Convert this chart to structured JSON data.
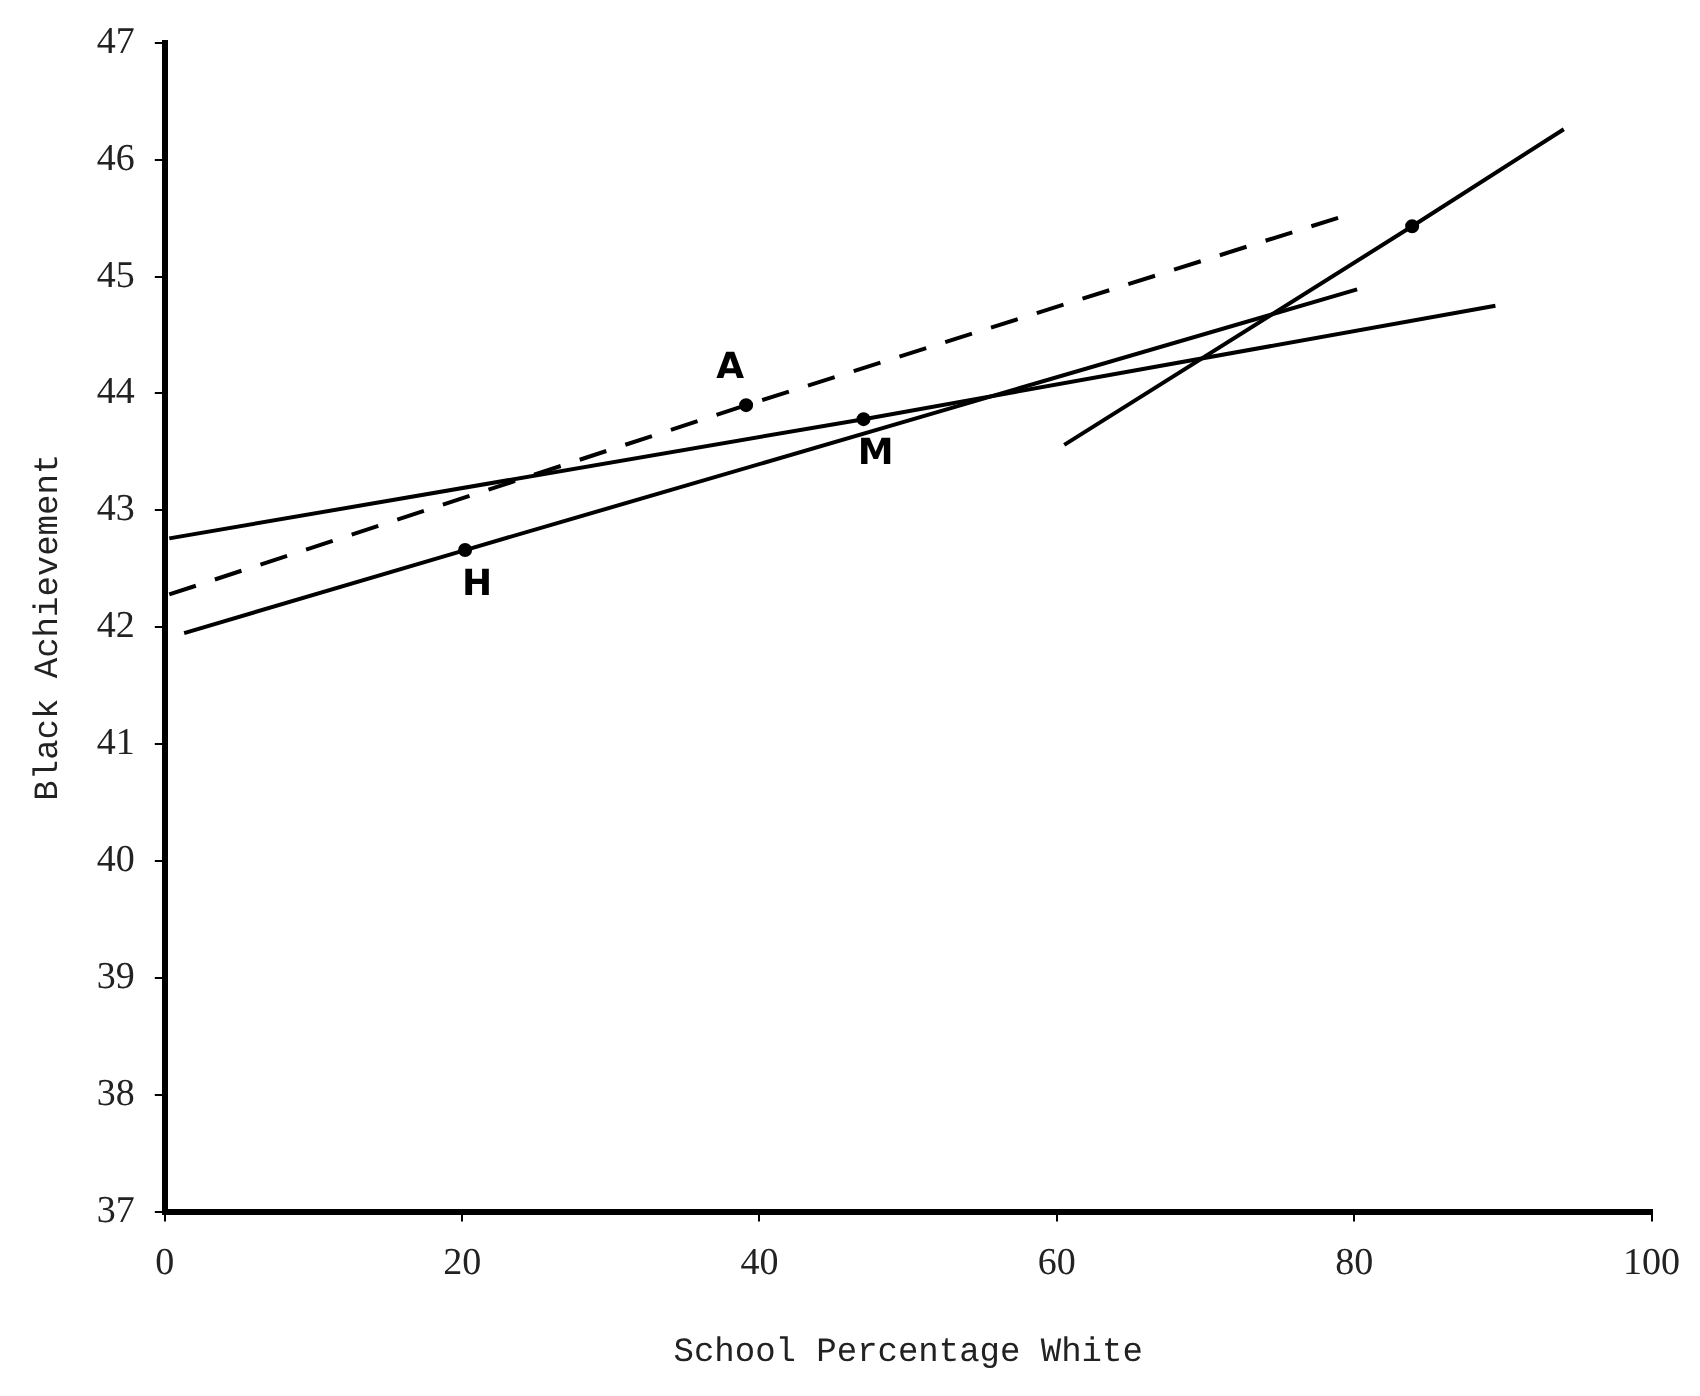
{
  "chart_data": {
    "type": "line",
    "xlabel": "School Percentage White",
    "ylabel": "Black Achievement",
    "xlim": [
      0,
      100
    ],
    "xticks": [
      0,
      20,
      40,
      60,
      80,
      100
    ],
    "ylim": [
      37,
      47
    ],
    "yticks": [
      37,
      38,
      39,
      40,
      41,
      42,
      43,
      44,
      45,
      46,
      47
    ],
    "grid": false,
    "legend": false,
    "series": [
      {
        "type": "line",
        "color": "#000000",
        "line_style": "dashed",
        "marker": "none",
        "x": [
          0.3,
          39.1,
          79.1
        ],
        "values": [
          42.28,
          43.9,
          45.51
        ]
      },
      {
        "type": "line",
        "color": "#000000",
        "line_style": "solid",
        "marker": "none",
        "x": [
          0.3,
          47.0,
          89.5
        ],
        "values": [
          42.76,
          43.78,
          44.75
        ]
      },
      {
        "type": "line",
        "color": "#000000",
        "line_style": "solid",
        "marker": "none",
        "x": [
          1.3,
          20.2,
          80.2
        ],
        "values": [
          41.95,
          42.66,
          44.89
        ]
      },
      {
        "type": "line",
        "color": "#000000",
        "line_style": "solid",
        "marker": "none",
        "x": [
          60.5,
          83.9,
          94.1
        ],
        "values": [
          43.56,
          45.43,
          46.26
        ]
      },
      {
        "type": "scatter",
        "color": "#000000",
        "marker": "circle",
        "x": [
          39.1,
          47.0,
          20.2,
          83.9
        ],
        "values": [
          43.9,
          43.78,
          42.66,
          45.43
        ]
      }
    ],
    "annotations": [
      {
        "text": "A",
        "x": 39.1,
        "y": 43.9
      },
      {
        "text": "M",
        "x": 47.0,
        "y": 43.78
      },
      {
        "text": "H",
        "x": 20.2,
        "y": 42.66
      }
    ]
  }
}
